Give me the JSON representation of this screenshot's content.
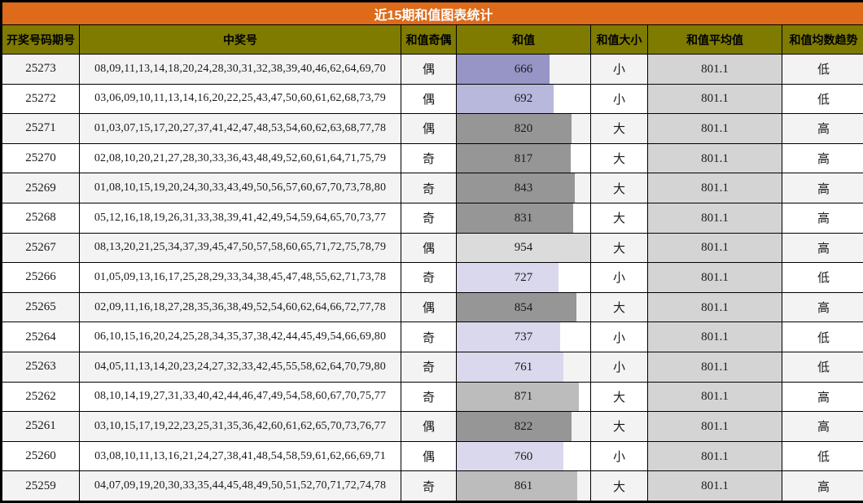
{
  "title": "近15期和值图表统计",
  "columns": [
    "开奖号码期号",
    "中奖号",
    "和值奇偶",
    "和值",
    "和值大小",
    "和值平均值",
    "和值均数趋势"
  ],
  "colors": {
    "title_bg": "#DD6B19",
    "title_text": "#FFFFFF",
    "header_bg": "#7E7B00",
    "header_text": "#000000",
    "grid_line": "#000000",
    "row_stripe": "#F3F3F3",
    "row_plain": "#FFFFFF",
    "avg_bar": "#D4D4D4"
  },
  "rows": [
    {
      "period": "25273",
      "numbers": "08,09,11,13,14,18,20,24,28,30,31,32,38,39,40,46,62,64,69,70",
      "parity": "偶",
      "sum": 666,
      "bar_color": "#9795C6",
      "size": "小",
      "avg": "801.1",
      "trend": "低"
    },
    {
      "period": "25272",
      "numbers": "03,06,09,10,11,13,14,16,20,22,25,43,47,50,60,61,62,68,73,79",
      "parity": "偶",
      "sum": 692,
      "bar_color": "#B8B7DC",
      "size": "小",
      "avg": "801.1",
      "trend": "低"
    },
    {
      "period": "25271",
      "numbers": "01,03,07,15,17,20,27,37,41,42,47,48,53,54,60,62,63,68,77,78",
      "parity": "偶",
      "sum": 820,
      "bar_color": "#969696",
      "size": "大",
      "avg": "801.1",
      "trend": "高"
    },
    {
      "period": "25270",
      "numbers": "02,08,10,20,21,27,28,30,33,36,43,48,49,52,60,61,64,71,75,79",
      "parity": "奇",
      "sum": 817,
      "bar_color": "#969696",
      "size": "大",
      "avg": "801.1",
      "trend": "高"
    },
    {
      "period": "25269",
      "numbers": "01,08,10,15,19,20,24,30,33,43,49,50,56,57,60,67,70,73,78,80",
      "parity": "奇",
      "sum": 843,
      "bar_color": "#969696",
      "size": "大",
      "avg": "801.1",
      "trend": "高"
    },
    {
      "period": "25268",
      "numbers": "05,12,16,18,19,26,31,33,38,39,41,42,49,54,59,64,65,70,73,77",
      "parity": "奇",
      "sum": 831,
      "bar_color": "#969696",
      "size": "大",
      "avg": "801.1",
      "trend": "高"
    },
    {
      "period": "25267",
      "numbers": "08,13,20,21,25,34,37,39,45,47,50,57,58,60,65,71,72,75,78,79",
      "parity": "偶",
      "sum": 954,
      "bar_color": "#DBDBDB",
      "size": "大",
      "avg": "801.1",
      "trend": "高"
    },
    {
      "period": "25266",
      "numbers": "01,05,09,13,16,17,25,28,29,33,34,38,45,47,48,55,62,71,73,78",
      "parity": "奇",
      "sum": 727,
      "bar_color": "#D9D8EC",
      "size": "小",
      "avg": "801.1",
      "trend": "低"
    },
    {
      "period": "25265",
      "numbers": "02,09,11,16,18,27,28,35,36,38,49,52,54,60,62,64,66,72,77,78",
      "parity": "偶",
      "sum": 854,
      "bar_color": "#969696",
      "size": "大",
      "avg": "801.1",
      "trend": "高"
    },
    {
      "period": "25264",
      "numbers": "06,10,15,16,20,24,25,28,34,35,37,38,42,44,45,49,54,66,69,80",
      "parity": "奇",
      "sum": 737,
      "bar_color": "#D9D8EC",
      "size": "小",
      "avg": "801.1",
      "trend": "低"
    },
    {
      "period": "25263",
      "numbers": "04,05,11,13,14,20,23,24,27,32,33,42,45,55,58,62,64,70,79,80",
      "parity": "奇",
      "sum": 761,
      "bar_color": "#D9D8EC",
      "size": "小",
      "avg": "801.1",
      "trend": "低"
    },
    {
      "period": "25262",
      "numbers": "08,10,14,19,27,31,33,40,42,44,46,47,49,54,58,60,67,70,75,77",
      "parity": "奇",
      "sum": 871,
      "bar_color": "#BCBCBC",
      "size": "大",
      "avg": "801.1",
      "trend": "高"
    },
    {
      "period": "25261",
      "numbers": "03,10,15,17,19,22,23,25,31,35,36,42,60,61,62,65,70,73,76,77",
      "parity": "偶",
      "sum": 822,
      "bar_color": "#969696",
      "size": "大",
      "avg": "801.1",
      "trend": "高"
    },
    {
      "period": "25260",
      "numbers": "03,08,10,11,13,16,21,24,27,38,41,48,54,58,59,61,62,66,69,71",
      "parity": "偶",
      "sum": 760,
      "bar_color": "#D9D8EC",
      "size": "小",
      "avg": "801.1",
      "trend": "低"
    },
    {
      "period": "25259",
      "numbers": "04,07,09,19,20,30,33,35,44,45,48,49,50,51,52,70,71,72,74,78",
      "parity": "奇",
      "sum": 861,
      "bar_color": "#BCBCBC",
      "size": "大",
      "avg": "801.1",
      "trend": "高"
    }
  ]
}
